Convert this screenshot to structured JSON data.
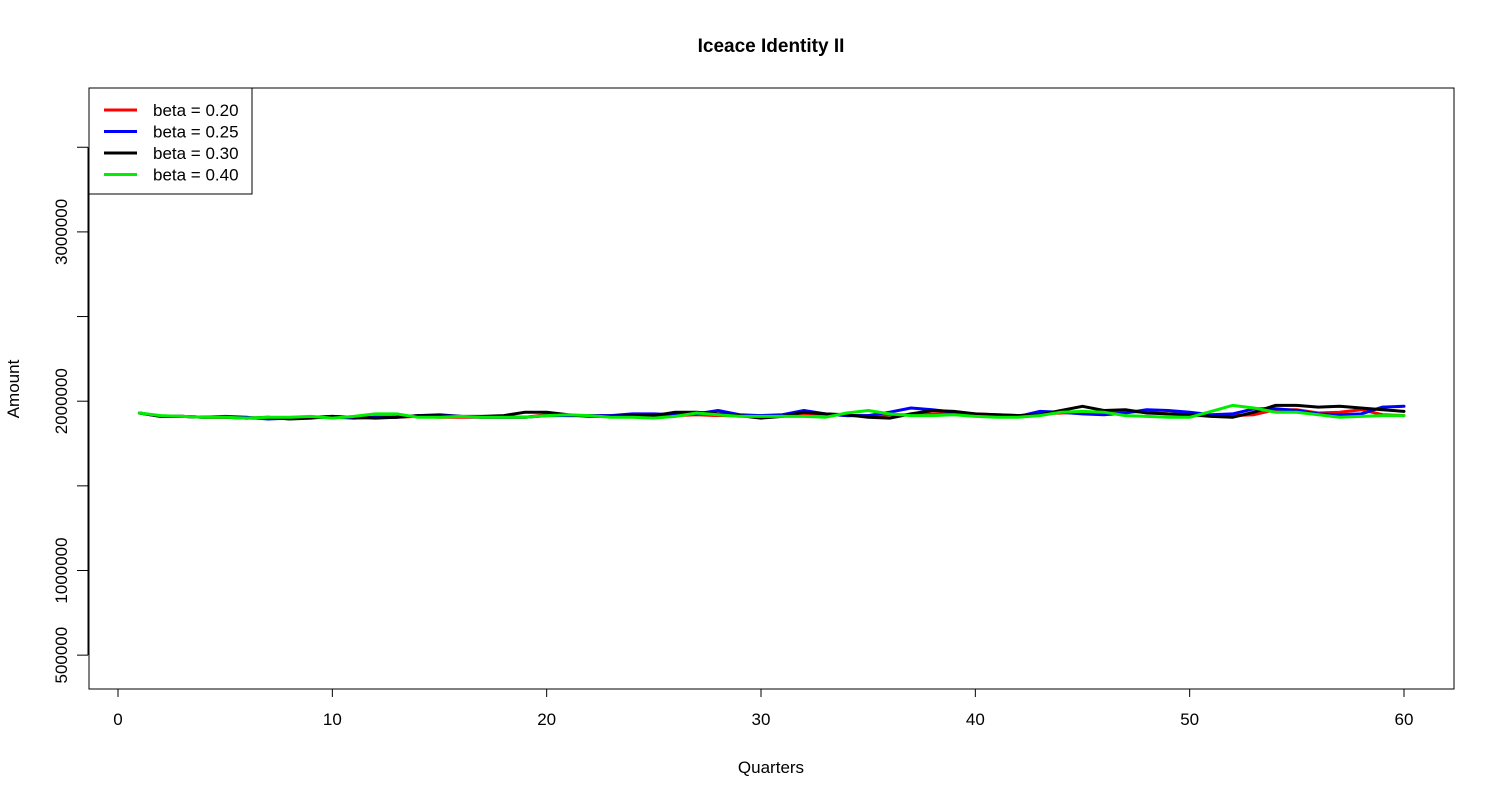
{
  "chart_data": {
    "type": "line",
    "title": "Iceace Identity II",
    "xlabel": "Quarters",
    "ylabel": "Amount",
    "xlim": [
      0,
      60
    ],
    "ylim": [
      300000,
      3850000
    ],
    "x_ticks": [
      0,
      10,
      20,
      30,
      40,
      50,
      60
    ],
    "x_tick_labels": [
      "0",
      "10",
      "20",
      "30",
      "40",
      "50",
      "60"
    ],
    "y_ticks": [
      500000,
      1000000,
      1500000,
      2000000,
      2500000,
      3000000,
      3500000
    ],
    "y_tick_labels": [
      "500000",
      "1000000",
      "",
      "2000000",
      "",
      "3000000",
      ""
    ],
    "grid": false,
    "legend_position": "top-left",
    "x": [
      1,
      2,
      3,
      4,
      5,
      6,
      7,
      8,
      9,
      10,
      11,
      12,
      13,
      14,
      15,
      16,
      17,
      18,
      19,
      20,
      21,
      22,
      23,
      24,
      25,
      26,
      27,
      28,
      29,
      30,
      31,
      32,
      33,
      34,
      35,
      36,
      37,
      38,
      39,
      40,
      41,
      42,
      43,
      44,
      45,
      46,
      47,
      48,
      49,
      50,
      51,
      52,
      53,
      54,
      55,
      56,
      57,
      58,
      59,
      60
    ],
    "series": [
      {
        "name": "beta = 0.20",
        "color": "#ff0000",
        "values": [
          1930000,
          1910000,
          1910000,
          1905000,
          1905000,
          1900000,
          1900000,
          1900000,
          1905000,
          1905000,
          1900000,
          1905000,
          1905000,
          1910000,
          1905000,
          1905000,
          1905000,
          1905000,
          1905000,
          1920000,
          1915000,
          1915000,
          1915000,
          1915000,
          1915000,
          1915000,
          1920000,
          1915000,
          1915000,
          1915000,
          1915000,
          1925000,
          1925000,
          1915000,
          1915000,
          1920000,
          1920000,
          1925000,
          1930000,
          1925000,
          1920000,
          1915000,
          1925000,
          1930000,
          1935000,
          1935000,
          1940000,
          1935000,
          1925000,
          1920000,
          1915000,
          1915000,
          1920000,
          1950000,
          1950000,
          1930000,
          1935000,
          1950000,
          1920000,
          1915000
        ]
      },
      {
        "name": "beta = 0.25",
        "color": "#0000ff",
        "values": [
          1930000,
          1910000,
          1910000,
          1905000,
          1910000,
          1905000,
          1895000,
          1900000,
          1905000,
          1910000,
          1900000,
          1905000,
          1905000,
          1915000,
          1920000,
          1910000,
          1905000,
          1905000,
          1905000,
          1915000,
          1915000,
          1915000,
          1915000,
          1925000,
          1925000,
          1920000,
          1925000,
          1945000,
          1920000,
          1915000,
          1920000,
          1945000,
          1925000,
          1915000,
          1915000,
          1935000,
          1960000,
          1950000,
          1935000,
          1920000,
          1910000,
          1910000,
          1940000,
          1935000,
          1925000,
          1920000,
          1930000,
          1950000,
          1945000,
          1935000,
          1920000,
          1925000,
          1955000,
          1955000,
          1945000,
          1925000,
          1920000,
          1925000,
          1965000,
          1970000
        ]
      },
      {
        "name": "beta = 0.30",
        "color": "#000000",
        "values": [
          1930000,
          1910000,
          1910000,
          1905000,
          1905000,
          1900000,
          1905000,
          1895000,
          1900000,
          1910000,
          1905000,
          1900000,
          1905000,
          1915000,
          1915000,
          1910000,
          1910000,
          1915000,
          1935000,
          1935000,
          1920000,
          1910000,
          1910000,
          1915000,
          1915000,
          1935000,
          1935000,
          1925000,
          1915000,
          1900000,
          1910000,
          1935000,
          1925000,
          1920000,
          1905000,
          1900000,
          1925000,
          1945000,
          1940000,
          1925000,
          1920000,
          1915000,
          1920000,
          1945000,
          1970000,
          1945000,
          1950000,
          1930000,
          1925000,
          1920000,
          1910000,
          1905000,
          1935000,
          1975000,
          1975000,
          1965000,
          1970000,
          1960000,
          1950000,
          1940000
        ]
      },
      {
        "name": "beta = 0.40",
        "color": "#00ee00",
        "values": [
          1930000,
          1915000,
          1910000,
          1905000,
          1905000,
          1900000,
          1905000,
          1905000,
          1910000,
          1900000,
          1910000,
          1925000,
          1925000,
          1905000,
          1905000,
          1910000,
          1905000,
          1905000,
          1905000,
          1915000,
          1920000,
          1915000,
          1905000,
          1905000,
          1900000,
          1910000,
          1930000,
          1920000,
          1910000,
          1910000,
          1910000,
          1910000,
          1905000,
          1930000,
          1945000,
          1925000,
          1915000,
          1915000,
          1920000,
          1910000,
          1905000,
          1905000,
          1915000,
          1935000,
          1940000,
          1935000,
          1915000,
          1910000,
          1905000,
          1905000,
          1940000,
          1975000,
          1960000,
          1935000,
          1935000,
          1920000,
          1905000,
          1910000,
          1915000,
          1915000
        ]
      }
    ]
  }
}
